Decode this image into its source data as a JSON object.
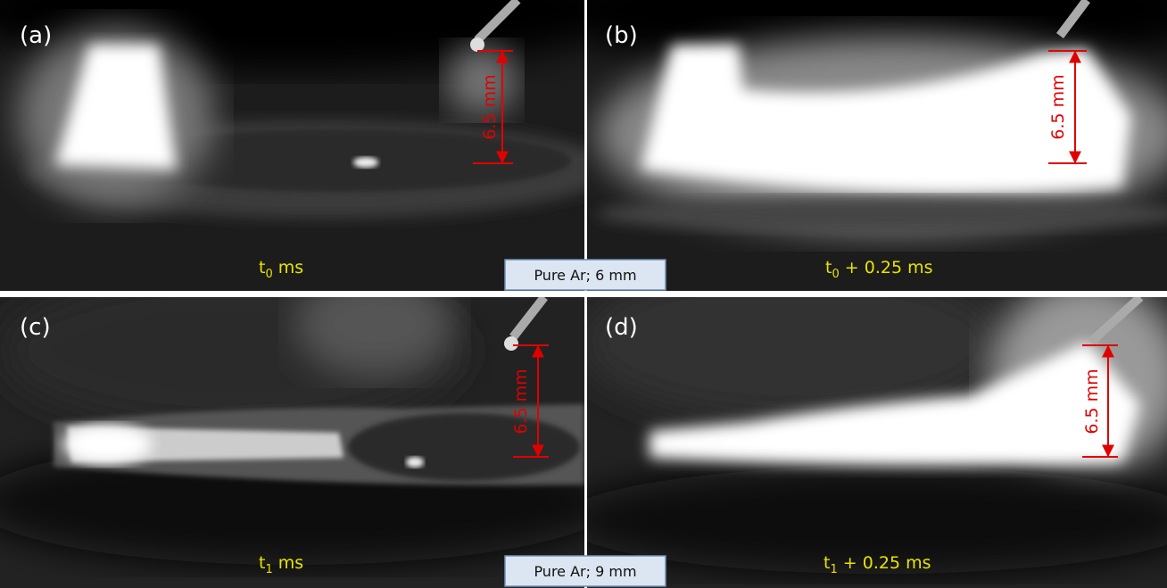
{
  "panels": [
    {
      "label": "(a)",
      "time": {
        "base": "t",
        "sub": "0",
        "rest": " ms"
      },
      "scale": "6.5 mm"
    },
    {
      "label": "(b)",
      "time": {
        "base": "t",
        "sub": "0",
        "rest": " + 0.25 ms"
      },
      "scale": "6.5 mm"
    },
    {
      "label": "(c)",
      "time": {
        "base": "t",
        "sub": "1",
        "rest": " ms"
      },
      "scale": "6.5 mm"
    },
    {
      "label": "(d)",
      "time": {
        "base": "t",
        "sub": "1",
        "rest": " + 0.25 ms"
      },
      "scale": "6.5 mm"
    }
  ],
  "captions": [
    "Pure Ar; 6 mm",
    "Pure Ar; 9 mm"
  ]
}
